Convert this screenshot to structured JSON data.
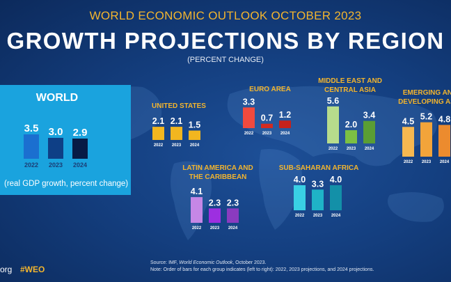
{
  "header": {
    "supertitle": "WORLD ECONOMIC OUTLOOK OCTOBER 2023",
    "title": "GROWTH PROJECTIONS BY REGION",
    "subtitle": "(PERCENT CHANGE)"
  },
  "world": {
    "title": "WORLD",
    "note": "(real GDP growth, percent change)"
  },
  "regions": {
    "world": "WORLD",
    "united_states": "UNITED STATES",
    "euro_area": "EURO AREA",
    "middle_east_1": "MIDDLE EAST AND",
    "middle_east_2": "CENTRAL ASIA",
    "emerging_1": "EMERGING AND",
    "emerging_2": "DEVELOPING ASIA",
    "latin_1": "LATIN AMERICA AND",
    "latin_2": "THE CARIBBEAN",
    "ssa": "SUB-SAHARAN AFRICA"
  },
  "footer": {
    "source_prefix": "Source:  IMF, ",
    "source_title": "World Economic Outlook",
    "source_suffix": ", October 2023.",
    "note": "Note:  Order of bars for each group indicates (left to right): 2022, 2023 projections, and 2024 projections.",
    "org": "org",
    "hashtag": "#WEO"
  },
  "colors": {
    "accent": "#f3b52e",
    "world_panel": "#1aa3de"
  },
  "chart_data": [
    {
      "type": "bar",
      "title": "WORLD",
      "categories": [
        "2022",
        "2023",
        "2024"
      ],
      "values": [
        3.5,
        3.0,
        2.9
      ],
      "labels": [
        "3.5",
        "3.0",
        "2.9"
      ],
      "colors": [
        "#1b6fd0",
        "#0e3f86",
        "#071b45"
      ],
      "ylim": [
        0,
        5
      ]
    },
    {
      "type": "bar",
      "title": "UNITED STATES",
      "categories": [
        "2022",
        "2023",
        "2024"
      ],
      "values": [
        2.1,
        2.1,
        1.5
      ],
      "labels": [
        "2.1",
        "2.1",
        "1.5"
      ],
      "colors": [
        "#f2b61f",
        "#f2b61f",
        "#f2b61f"
      ],
      "ylim": [
        0,
        5
      ]
    },
    {
      "type": "bar",
      "title": "EURO AREA",
      "categories": [
        "2022",
        "2023",
        "2024"
      ],
      "values": [
        3.3,
        0.7,
        1.2
      ],
      "labels": [
        "3.3",
        "0.7",
        "1.2"
      ],
      "colors": [
        "#f04a3e",
        "#d42a20",
        "#c5221c"
      ],
      "ylim": [
        0,
        5
      ]
    },
    {
      "type": "bar",
      "title": "MIDDLE EAST AND CENTRAL ASIA",
      "categories": [
        "2022",
        "2023",
        "2024"
      ],
      "values": [
        5.6,
        2.0,
        3.4
      ],
      "labels": [
        "5.6",
        "2.0",
        "3.4"
      ],
      "colors": [
        "#b7dc8c",
        "#7cc043",
        "#5a9e34"
      ],
      "ylim": [
        0,
        6
      ]
    },
    {
      "type": "bar",
      "title": "EMERGING AND DEVELOPING ASIA",
      "categories": [
        "2022",
        "2023",
        "2024"
      ],
      "values": [
        4.5,
        5.2,
        4.8
      ],
      "labels": [
        "4.5",
        "5.2",
        "4.8"
      ],
      "colors": [
        "#f6b850",
        "#f2a43a",
        "#ec8b2e"
      ],
      "ylim": [
        0,
        6
      ]
    },
    {
      "type": "bar",
      "title": "LATIN AMERICA AND THE CARIBBEAN",
      "categories": [
        "2022",
        "2023",
        "2024"
      ],
      "values": [
        4.1,
        2.3,
        2.3
      ],
      "labels": [
        "4.1",
        "2.3",
        "2.3"
      ],
      "colors": [
        "#c687e6",
        "#9d2fe0",
        "#8a3bbf"
      ],
      "ylim": [
        0,
        5
      ]
    },
    {
      "type": "bar",
      "title": "SUB-SAHARAN AFRICA",
      "categories": [
        "2022",
        "2023",
        "2024"
      ],
      "values": [
        4.0,
        3.3,
        4.0
      ],
      "labels": [
        "4.0",
        "3.3",
        "4.0"
      ],
      "colors": [
        "#39d0e4",
        "#1fb3c7",
        "#1390a8"
      ],
      "ylim": [
        0,
        5
      ]
    }
  ]
}
